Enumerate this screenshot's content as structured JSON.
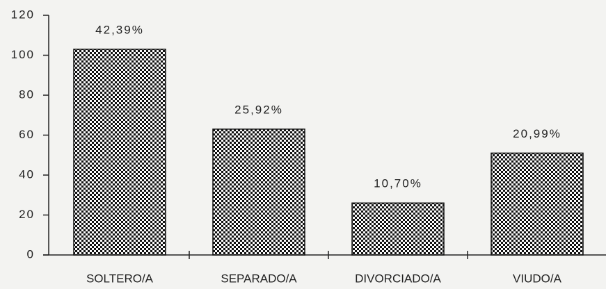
{
  "chart_data": {
    "type": "bar",
    "categories": [
      "SOLTERO/A",
      "SEPARADO/A",
      "DIVORCIADO/A",
      "VIUDO/A"
    ],
    "values": [
      103,
      63,
      26,
      51
    ],
    "annotations": [
      "42,39%",
      "25,92%",
      "10,70%",
      "20,99%"
    ],
    "color": "#111111",
    "ylim": [
      0,
      120
    ],
    "yticks": [
      0,
      20,
      40,
      60,
      80,
      100,
      120
    ],
    "grid": false
  }
}
